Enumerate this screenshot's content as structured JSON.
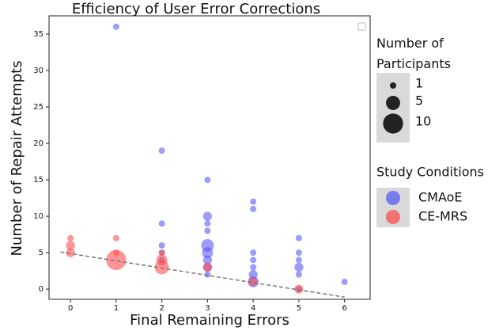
{
  "chart_data": {
    "type": "scatter",
    "title": "Efficiency of User Error Corrections",
    "x_label": "Final Remaining Errors",
    "y_label": "Number of Repair Attempts",
    "xlim": [
      -0.47,
      6.56
    ],
    "ylim": [
      -1.4,
      37.5
    ],
    "xticks": [
      0,
      1,
      2,
      3,
      4,
      5,
      6
    ],
    "yticks": [
      0,
      5,
      10,
      15,
      20,
      25,
      30,
      35
    ],
    "size_legend_title": "Number of Participants",
    "size_legend": [
      1,
      5,
      10
    ],
    "legend_title": "Study Conditions",
    "series": [
      {
        "name": "CMAoE",
        "color": "#5a5af5",
        "x": [
          1,
          2,
          2,
          2,
          2,
          2,
          3,
          3,
          3,
          3,
          3,
          3,
          3,
          3,
          3,
          4,
          4,
          4,
          4,
          4,
          4,
          4,
          5,
          5,
          5,
          5,
          5,
          5,
          6
        ],
        "values": [
          36,
          19,
          9,
          6,
          5,
          4,
          15,
          10,
          9,
          8,
          6,
          5,
          4,
          3,
          2,
          12,
          11,
          5,
          4,
          3,
          2,
          1,
          7,
          5,
          4,
          3,
          2,
          0,
          1
        ],
        "sizes": [
          1,
          1,
          1,
          1,
          1,
          1,
          1,
          2,
          1,
          1,
          4,
          3,
          2,
          2,
          1,
          1,
          1,
          1,
          1,
          1,
          2,
          3,
          1,
          1,
          1,
          2,
          1,
          1,
          1
        ]
      },
      {
        "name": "CE-MRS",
        "color": "#ff4d4d",
        "x": [
          0,
          0,
          0,
          1,
          1,
          1,
          2,
          2,
          2,
          3,
          4,
          5
        ],
        "values": [
          7,
          6,
          5,
          7,
          5,
          4,
          5,
          4,
          3,
          3,
          1,
          0
        ],
        "sizes": [
          1,
          2,
          2,
          1,
          1,
          10,
          1,
          3,
          5,
          2,
          2,
          2
        ]
      }
    ],
    "trend_line": {
      "x": [
        -0.22,
        6
      ],
      "y": [
        5.1,
        -1.1
      ]
    }
  }
}
